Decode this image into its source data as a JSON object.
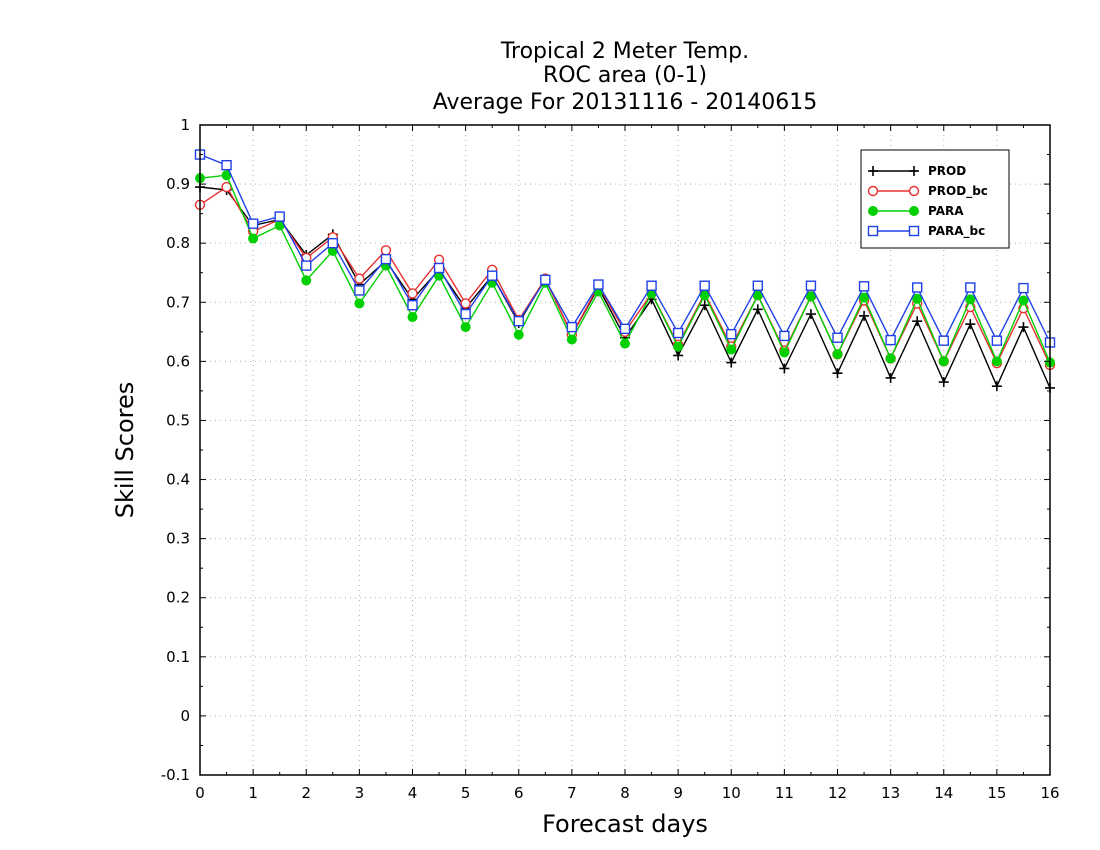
{
  "chart_data": {
    "type": "line",
    "title": [
      "Tropical 2 Meter Temp.",
      "ROC area (0-1)",
      "Average For 20131116 - 20140615"
    ],
    "xlabel": "Forecast days",
    "ylabel": "Skill Scores",
    "xlim": [
      0,
      16
    ],
    "ylim": [
      -0.1,
      1
    ],
    "xticks": [
      "0",
      "1",
      "2",
      "3",
      "4",
      "5",
      "6",
      "7",
      "8",
      "9",
      "10",
      "11",
      "12",
      "13",
      "14",
      "15",
      "16"
    ],
    "yticks": [
      "-0.1",
      "0",
      "0.1",
      "0.2",
      "0.3",
      "0.4",
      "0.5",
      "0.6",
      "0.7",
      "0.8",
      "0.9",
      "1"
    ],
    "grid": true,
    "legend_position": "top-right",
    "x": [
      0,
      0.5,
      1,
      1.5,
      2,
      2.5,
      3,
      3.5,
      4,
      4.5,
      5,
      5.5,
      6,
      6.5,
      7,
      7.5,
      8,
      8.5,
      9,
      9.5,
      10,
      10.5,
      11,
      11.5,
      12,
      12.5,
      13,
      13.5,
      14,
      14.5,
      15,
      15.5,
      16
    ],
    "series": [
      {
        "name": "PROD",
        "color": "#000000",
        "marker": "plus",
        "values": [
          0.895,
          0.89,
          0.83,
          0.84,
          0.78,
          0.815,
          0.73,
          0.77,
          0.705,
          0.755,
          0.69,
          0.745,
          0.665,
          0.74,
          0.645,
          0.725,
          0.64,
          0.705,
          0.61,
          0.695,
          0.598,
          0.688,
          0.588,
          0.68,
          0.58,
          0.677,
          0.572,
          0.668,
          0.565,
          0.663,
          0.558,
          0.658,
          0.555
        ]
      },
      {
        "name": "PROD_bc",
        "color": "#e83030",
        "marker": "open-circle",
        "values": [
          0.865,
          0.895,
          0.82,
          0.84,
          0.775,
          0.81,
          0.74,
          0.788,
          0.715,
          0.772,
          0.698,
          0.755,
          0.67,
          0.74,
          0.645,
          0.728,
          0.65,
          0.715,
          0.628,
          0.715,
          0.625,
          0.712,
          0.618,
          0.71,
          0.612,
          0.703,
          0.605,
          0.698,
          0.6,
          0.692,
          0.597,
          0.69,
          0.594
        ]
      },
      {
        "name": "PARA",
        "color": "#00d000",
        "marker": "filled-circle",
        "values": [
          0.91,
          0.915,
          0.808,
          0.83,
          0.737,
          0.787,
          0.698,
          0.762,
          0.675,
          0.745,
          0.658,
          0.733,
          0.645,
          0.733,
          0.637,
          0.718,
          0.63,
          0.715,
          0.625,
          0.712,
          0.62,
          0.712,
          0.615,
          0.71,
          0.612,
          0.708,
          0.605,
          0.706,
          0.6,
          0.705,
          0.6,
          0.703,
          0.598
        ]
      },
      {
        "name": "PARA_bc",
        "color": "#2040e8",
        "marker": "open-square",
        "values": [
          0.95,
          0.932,
          0.833,
          0.845,
          0.762,
          0.8,
          0.72,
          0.773,
          0.695,
          0.758,
          0.68,
          0.745,
          0.668,
          0.738,
          0.658,
          0.73,
          0.655,
          0.728,
          0.648,
          0.728,
          0.646,
          0.728,
          0.643,
          0.728,
          0.64,
          0.727,
          0.636,
          0.725,
          0.635,
          0.725,
          0.635,
          0.724,
          0.632
        ]
      }
    ]
  }
}
